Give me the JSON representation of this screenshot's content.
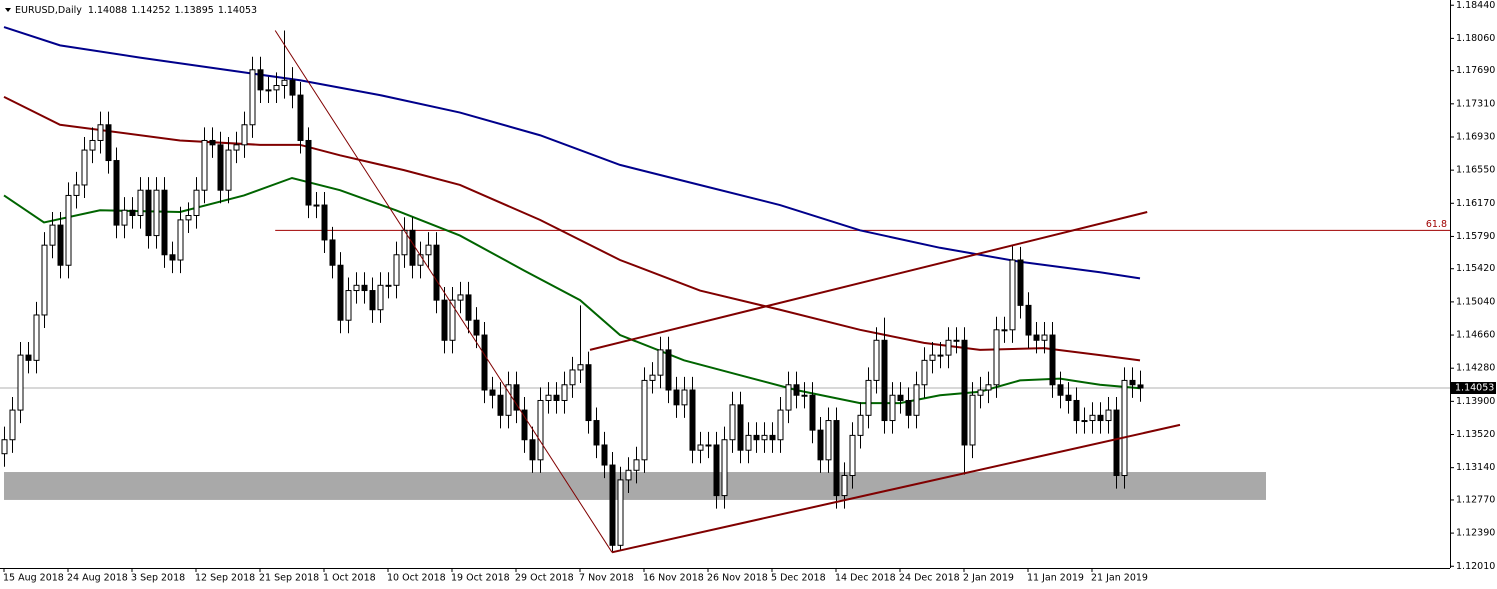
{
  "chart_data": {
    "type": "candlestick",
    "symbol": "EURUSD,Daily",
    "ohlc_labels": [
      "1.14088",
      "1.14252",
      "1.13895",
      "1.14053"
    ],
    "open": [
      1.133,
      1.1346,
      1.138,
      1.1443,
      1.1437,
      1.1489,
      1.1569,
      1.1592,
      1.1546,
      1.1626,
      1.1638,
      1.1678,
      1.1689,
      1.1707,
      1.1666,
      1.1592,
      1.1609,
      1.1603,
      1.1632,
      1.158,
      1.1632,
      1.1558,
      1.1552,
      1.1598,
      1.1603,
      1.1632,
      1.1689,
      1.1684,
      1.1632,
      1.1678,
      1.1684,
      1.1707,
      1.177,
      1.1747,
      1.1747,
      1.1752,
      1.1758,
      1.1741,
      1.1689,
      1.1615,
      1.1615,
      1.1575,
      1.1546,
      1.1483,
      1.1517,
      1.1523,
      1.1517,
      1.1495,
      1.1523,
      1.1523,
      1.1558,
      1.1586,
      1.1546,
      1.1558,
      1.1569,
      1.1506,
      1.146,
      1.1506,
      1.1512,
      1.1483,
      1.1466,
      1.1403,
      1.1397,
      1.1374,
      1.1409,
      1.138,
      1.1346,
      1.1323,
      1.1391,
      1.1397,
      1.1391,
      1.1409,
      1.1426,
      1.1432,
      1.1368,
      1.134,
      1.1317,
      1.1225,
      1.13,
      1.1311,
      1.1323,
      1.1414,
      1.142,
      1.1449,
      1.1403,
      1.1386,
      1.1403,
      1.1334,
      1.134,
      1.134,
      1.1282,
      1.1346,
      1.1386,
      1.1334,
      1.1351,
      1.1346,
      1.1351,
      1.1346,
      1.138,
      1.1409,
      1.1397,
      1.1397,
      1.1357,
      1.1323,
      1.1368,
      1.1282,
      1.1305,
      1.1351,
      1.1374,
      1.1414,
      1.146,
      1.1368,
      1.1397,
      1.1391,
      1.1374,
      1.1409,
      1.1437,
      1.1443,
      1.1443,
      1.146,
      1.146,
      1.134,
      1.1397,
      1.1403,
      1.1409,
      1.1472,
      1.1472,
      1.1552,
      1.15,
      1.1466,
      1.146,
      1.1466,
      1.1409,
      1.1397,
      1.1391,
      1.1368,
      1.1368,
      1.1374,
      1.1368,
      1.138,
      1.1305,
      1.1414,
      1.14088
    ],
    "high": [
      1.1361,
      1.1395,
      1.1458,
      1.1458,
      1.1504,
      1.1584,
      1.1607,
      1.1607,
      1.1641,
      1.1653,
      1.1693,
      1.1704,
      1.1722,
      1.1722,
      1.1681,
      1.1624,
      1.1624,
      1.1647,
      1.1647,
      1.1647,
      1.1647,
      1.1573,
      1.1613,
      1.1618,
      1.1647,
      1.1704,
      1.1704,
      1.1699,
      1.1693,
      1.1699,
      1.1722,
      1.1785,
      1.1785,
      1.1762,
      1.1767,
      1.1815,
      1.1773,
      1.1756,
      1.1704,
      1.163,
      1.163,
      1.159,
      1.1561,
      1.1532,
      1.1538,
      1.1538,
      1.1532,
      1.1538,
      1.1538,
      1.1573,
      1.1601,
      1.1601,
      1.1573,
      1.1584,
      1.1584,
      1.1521,
      1.1521,
      1.1527,
      1.1527,
      1.1498,
      1.1481,
      1.1418,
      1.1412,
      1.1424,
      1.1424,
      1.1395,
      1.1361,
      1.1406,
      1.1412,
      1.1412,
      1.1424,
      1.1441,
      1.15,
      1.1447,
      1.1383,
      1.1355,
      1.1332,
      1.1315,
      1.1326,
      1.1338,
      1.1429,
      1.1435,
      1.1464,
      1.1464,
      1.1418,
      1.1418,
      1.1418,
      1.1355,
      1.1355,
      1.1355,
      1.1361,
      1.1401,
      1.1401,
      1.1366,
      1.1366,
      1.1366,
      1.1366,
      1.1395,
      1.1424,
      1.1424,
      1.1412,
      1.1412,
      1.1372,
      1.1383,
      1.1383,
      1.132,
      1.1366,
      1.1389,
      1.1429,
      1.1475,
      1.1486,
      1.1412,
      1.1412,
      1.1406,
      1.1424,
      1.1452,
      1.1458,
      1.1458,
      1.1475,
      1.1475,
      1.1475,
      1.1412,
      1.1418,
      1.1424,
      1.1487,
      1.1487,
      1.1569,
      1.1567,
      1.1515,
      1.1481,
      1.1481,
      1.1481,
      1.1424,
      1.1412,
      1.1406,
      1.1383,
      1.1389,
      1.1389,
      1.1395,
      1.1395,
      1.1429,
      1.1429,
      1.14252
    ],
    "low": [
      1.1315,
      1.1331,
      1.1365,
      1.1422,
      1.1422,
      1.1474,
      1.1554,
      1.1531,
      1.1531,
      1.1611,
      1.1623,
      1.1663,
      1.1674,
      1.1651,
      1.1577,
      1.1577,
      1.1588,
      1.1588,
      1.1565,
      1.1565,
      1.1543,
      1.1537,
      1.1537,
      1.1583,
      1.1588,
      1.1617,
      1.1669,
      1.1617,
      1.1617,
      1.1663,
      1.1669,
      1.1692,
      1.1732,
      1.1732,
      1.1732,
      1.1737,
      1.1726,
      1.1674,
      1.16,
      1.16,
      1.156,
      1.1531,
      1.1468,
      1.1468,
      1.1502,
      1.1502,
      1.148,
      1.148,
      1.1508,
      1.1508,
      1.1543,
      1.1531,
      1.1531,
      1.1543,
      1.1491,
      1.1445,
      1.1445,
      1.1491,
      1.1468,
      1.1451,
      1.1388,
      1.1382,
      1.1359,
      1.1359,
      1.1365,
      1.1331,
      1.1308,
      1.1308,
      1.1376,
      1.1376,
      1.1376,
      1.1394,
      1.1411,
      1.1353,
      1.1325,
      1.1302,
      1.1218,
      1.122,
      1.1285,
      1.1296,
      1.1308,
      1.1399,
      1.1405,
      1.1388,
      1.1371,
      1.1371,
      1.1319,
      1.1319,
      1.1325,
      1.1267,
      1.1267,
      1.1331,
      1.1319,
      1.1319,
      1.1331,
      1.1331,
      1.1331,
      1.1331,
      1.1365,
      1.1382,
      1.1382,
      1.1342,
      1.1308,
      1.1308,
      1.1267,
      1.1267,
      1.129,
      1.1336,
      1.1359,
      1.1399,
      1.1353,
      1.1353,
      1.1376,
      1.1359,
      1.1359,
      1.1394,
      1.1422,
      1.1428,
      1.1428,
      1.1445,
      1.1306,
      1.1325,
      1.1382,
      1.1388,
      1.1394,
      1.1457,
      1.1457,
      1.1485,
      1.1451,
      1.1445,
      1.1445,
      1.1394,
      1.1382,
      1.1376,
      1.1353,
      1.1353,
      1.1353,
      1.1353,
      1.1353,
      1.129,
      1.129,
      1.1394,
      1.13895
    ],
    "close": [
      1.1346,
      1.138,
      1.1443,
      1.1437,
      1.1489,
      1.1569,
      1.1592,
      1.1546,
      1.1626,
      1.1638,
      1.1678,
      1.1689,
      1.1707,
      1.1666,
      1.1592,
      1.1609,
      1.1603,
      1.1632,
      1.158,
      1.1632,
      1.1558,
      1.1552,
      1.1598,
      1.1603,
      1.1632,
      1.1689,
      1.1684,
      1.1632,
      1.1678,
      1.1684,
      1.1707,
      1.177,
      1.1747,
      1.1747,
      1.1752,
      1.1758,
      1.1741,
      1.1689,
      1.1615,
      1.1615,
      1.1575,
      1.1546,
      1.1483,
      1.1517,
      1.1523,
      1.1517,
      1.1495,
      1.1523,
      1.1523,
      1.1558,
      1.1586,
      1.1546,
      1.1558,
      1.1569,
      1.1506,
      1.146,
      1.1506,
      1.1512,
      1.1483,
      1.1466,
      1.1403,
      1.1397,
      1.1374,
      1.1409,
      1.138,
      1.1346,
      1.1323,
      1.1391,
      1.1397,
      1.1391,
      1.1409,
      1.1426,
      1.1432,
      1.1368,
      1.134,
      1.1317,
      1.1225,
      1.13,
      1.1311,
      1.1323,
      1.1414,
      1.142,
      1.1449,
      1.1403,
      1.1386,
      1.1403,
      1.1334,
      1.134,
      1.134,
      1.1282,
      1.1346,
      1.1386,
      1.1334,
      1.1351,
      1.1346,
      1.1351,
      1.1346,
      1.138,
      1.1409,
      1.1397,
      1.1397,
      1.1357,
      1.1323,
      1.1368,
      1.1282,
      1.1305,
      1.1351,
      1.1374,
      1.1414,
      1.146,
      1.1368,
      1.1397,
      1.1391,
      1.1374,
      1.1409,
      1.1437,
      1.1443,
      1.1443,
      1.146,
      1.146,
      1.134,
      1.1397,
      1.1403,
      1.1409,
      1.1472,
      1.1472,
      1.1552,
      1.15,
      1.1466,
      1.146,
      1.1466,
      1.1409,
      1.1397,
      1.1391,
      1.1368,
      1.1368,
      1.1374,
      1.1368,
      1.138,
      1.1305,
      1.1414,
      1.1409,
      1.14053
    ],
    "series": [
      {
        "color": "#006400",
        "x": [
          0,
          5,
          12,
          22,
          30,
          36,
          42,
          49,
          57,
          65,
          72,
          77,
          85,
          92,
          99,
          107,
          112,
          117,
          122,
          127,
          132,
          137,
          142
        ],
        "values": [
          1.1626,
          1.1595,
          1.1609,
          1.1607,
          1.1626,
          1.1646,
          1.1632,
          1.1609,
          1.158,
          1.154,
          1.1506,
          1.1466,
          1.1437,
          1.142,
          1.1403,
          1.1388,
          1.1388,
          1.1397,
          1.1401,
          1.1414,
          1.1416,
          1.1409,
          1.1405
        ]
      },
      {
        "color": "#800000",
        "x": [
          0,
          7,
          22,
          32,
          37,
          42,
          50,
          57,
          67,
          77,
          87,
          97,
          107,
          115,
          122,
          130,
          137,
          142
        ],
        "values": [
          1.1739,
          1.1707,
          1.1689,
          1.1684,
          1.1684,
          1.1672,
          1.1655,
          1.1638,
          1.1598,
          1.1552,
          1.1517,
          1.1495,
          1.1472,
          1.1457,
          1.1449,
          1.1451,
          1.1443,
          1.1437
        ]
      },
      {
        "color": "#00008b",
        "x": [
          0,
          7,
          17,
          30,
          37,
          47,
          57,
          67,
          77,
          87,
          97,
          107,
          117,
          127,
          137,
          142
        ],
        "values": [
          1.1819,
          1.1798,
          1.1784,
          1.1767,
          1.1758,
          1.1741,
          1.1721,
          1.1695,
          1.1661,
          1.1638,
          1.1615,
          1.1586,
          1.1566,
          1.155,
          1.1538,
          1.1531
        ]
      }
    ],
    "trendlines": [
      {
        "color": "#800000",
        "x": [
          33.9,
          76
        ],
        "values": [
          1.1815,
          1.1217
        ]
      },
      {
        "color": "#800000",
        "x": [
          73.25,
          142.9
        ],
        "values": [
          1.1449,
          1.1607
        ]
      },
      {
        "color": "#800000",
        "x": [
          76,
          147
        ],
        "values": [
          1.1217,
          1.1363
        ]
      }
    ],
    "level": {
      "value": 1.1586,
      "label": "61.8",
      "x": [
        33.9,
        180.75
      ],
      "color": "#a00000"
    },
    "zone": {
      "x": [
        0,
        157.75
      ],
      "values": [
        1.1309,
        1.1277
      ],
      "color": "#a9a9a9"
    },
    "current_price": {
      "value": 1.14053,
      "label": "1.14053"
    },
    "xlim": [
      -0.5,
      180.75
    ],
    "ylim": [
      1.1199,
      1.185
    ],
    "xticks": [
      {
        "value": 0,
        "label": "15 Aug 2018"
      },
      {
        "value": 8,
        "label": "24 Aug 2018"
      },
      {
        "value": 16,
        "label": "3 Sep 2018"
      },
      {
        "value": 24,
        "label": "12 Sep 2018"
      },
      {
        "value": 32,
        "label": "21 Sep 2018"
      },
      {
        "value": 40,
        "label": "1 Oct 2018"
      },
      {
        "value": 48,
        "label": "10 Oct 2018"
      },
      {
        "value": 56,
        "label": "19 Oct 2018"
      },
      {
        "value": 64,
        "label": "29 Oct 2018"
      },
      {
        "value": 72,
        "label": "7 Nov 2018"
      },
      {
        "value": 80,
        "label": "16 Nov 2018"
      },
      {
        "value": 88,
        "label": "26 Nov 2018"
      },
      {
        "value": 96,
        "label": "5 Dec 2018"
      },
      {
        "value": 104,
        "label": "14 Dec 2018"
      },
      {
        "value": 112,
        "label": "24 Dec 2018"
      },
      {
        "value": 120,
        "label": "2 Jan 2019"
      },
      {
        "value": 128,
        "label": "11 Jan 2019"
      },
      {
        "value": 136,
        "label": "21 Jan 2019"
      }
    ],
    "yticks": [
      {
        "value": 1.1844,
        "label": "1.18440"
      },
      {
        "value": 1.1806,
        "label": "1.18060"
      },
      {
        "value": 1.1769,
        "label": "1.17690"
      },
      {
        "value": 1.1731,
        "label": "1.17310"
      },
      {
        "value": 1.1693,
        "label": "1.16930"
      },
      {
        "value": 1.1655,
        "label": "1.16550"
      },
      {
        "value": 1.1617,
        "label": "1.16170"
      },
      {
        "value": 1.1579,
        "label": "1.15790"
      },
      {
        "value": 1.1542,
        "label": "1.15420"
      },
      {
        "value": 1.1504,
        "label": "1.15040"
      },
      {
        "value": 1.1466,
        "label": "1.14660"
      },
      {
        "value": 1.1428,
        "label": "1.14280"
      },
      {
        "value": 1.139,
        "label": "1.13900"
      },
      {
        "value": 1.1352,
        "label": "1.13520"
      },
      {
        "value": 1.1314,
        "label": "1.13140"
      },
      {
        "value": 1.1277,
        "label": "1.12770"
      },
      {
        "value": 1.1239,
        "label": "1.12390"
      },
      {
        "value": 1.1201,
        "label": "1.12010"
      }
    ],
    "grid": false
  }
}
